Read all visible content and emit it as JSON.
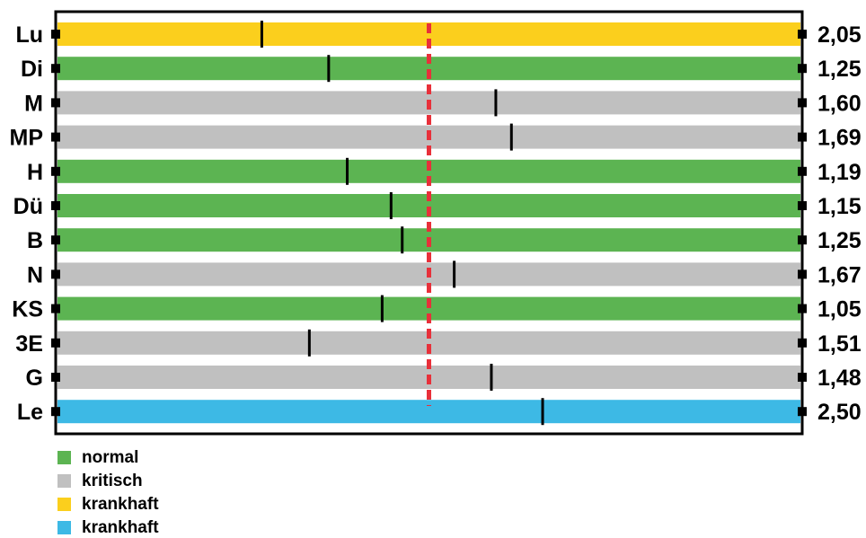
{
  "chart_data": {
    "type": "bar",
    "orientation": "horizontal",
    "rows": [
      {
        "label": "Lu",
        "value": "2,05",
        "marker": 0.275,
        "status": "krankhaft_yellow"
      },
      {
        "label": "Di",
        "value": "1,25",
        "marker": 0.365,
        "status": "normal"
      },
      {
        "label": "M",
        "value": "1,60",
        "marker": 0.59,
        "status": "kritisch"
      },
      {
        "label": "MP",
        "value": "1,69",
        "marker": 0.611,
        "status": "kritisch"
      },
      {
        "label": "H",
        "value": "1,19",
        "marker": 0.39,
        "status": "normal"
      },
      {
        "label": "Dü",
        "value": "1,15",
        "marker": 0.449,
        "status": "normal"
      },
      {
        "label": "B",
        "value": "1,25",
        "marker": 0.464,
        "status": "normal"
      },
      {
        "label": "N",
        "value": "1,67",
        "marker": 0.534,
        "status": "kritisch"
      },
      {
        "label": "KS",
        "value": "1,05",
        "marker": 0.437,
        "status": "normal"
      },
      {
        "label": "3E",
        "value": "1,51",
        "marker": 0.339,
        "status": "kritisch"
      },
      {
        "label": "G",
        "value": "1,48",
        "marker": 0.584,
        "status": "kritisch"
      },
      {
        "label": "Le",
        "value": "2,50",
        "marker": 0.653,
        "status": "krankhaft_blue"
      }
    ],
    "reference_line": {
      "position": 0.5,
      "style": "dashed",
      "color": "#e8303a"
    },
    "legend": [
      {
        "key": "normal",
        "label": "normal",
        "color": "#5cb452"
      },
      {
        "key": "kritisch",
        "label": "kritisch",
        "color": "#c0c0c0"
      },
      {
        "key": "krankhaft_yellow",
        "label": "krankhaft",
        "color": "#fbcf1d"
      },
      {
        "key": "krankhaft_blue",
        "label": "krankhaft",
        "color": "#3db9e5"
      }
    ],
    "legend_placement": "bottom-left",
    "grid": false
  }
}
